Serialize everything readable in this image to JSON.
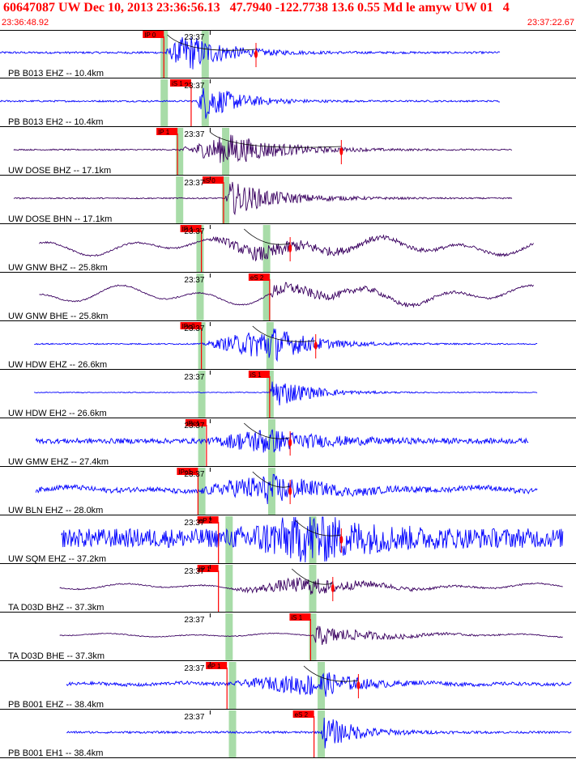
{
  "header": {
    "title": "60647087 UW Dec 10, 2013 23:36:56.13   47.7940 -122.7738 13.6 0.55 Md le amyw UW 01   4",
    "start_time": "23:36:48.92",
    "end_time": "23:37:22.67"
  },
  "chart_data": {
    "type": "line",
    "title": "60647087 UW Dec 10, 2013 23:36:56.13   47.7940 -122.7738 13.6 0.55 Md le amyw UW 01   4",
    "x_range_seconds": [
      0,
      33.75
    ],
    "time_tick_label": "23:37",
    "time_tick_offset_s": 11.08,
    "colors": {
      "blue": "#0000ff",
      "dark": "#3a0060",
      "pick": "#ff0000",
      "window": "#a8dca8",
      "tick": "#000000"
    },
    "traces": [
      {
        "label": "PB B013 EHZ -- 10.4km",
        "color": "blue",
        "data_start": 0.0,
        "data_end": 29.3,
        "noise": 0.05,
        "onset": 9.6,
        "peak": 11.0,
        "amp": 0.9,
        "decay": 2.2,
        "lowfreq": 0.0,
        "pick_label": "IP 0",
        "pick_time": 9.6,
        "windows": [
          9.6,
          12.0
        ],
        "coda_end": 15.0
      },
      {
        "label": "PB B013 EH2 -- 10.4km",
        "color": "blue",
        "data_start": 0.0,
        "data_end": 29.3,
        "noise": 0.04,
        "onset": 11.5,
        "peak": 12.0,
        "amp": 0.85,
        "decay": 2.0,
        "lowfreq": 0.0,
        "pick_label": "iS 1",
        "pick_time": 11.2,
        "windows": [
          9.6,
          12.0
        ],
        "coda_end": null
      },
      {
        "label": "UW DOSE BHZ -- 17.1km",
        "color": "dark",
        "data_start": 0.8,
        "data_end": 30.0,
        "noise": 0.03,
        "onset": 10.4,
        "peak": 13.5,
        "amp": 0.75,
        "decay": 3.0,
        "lowfreq": 0.0,
        "pick_label": "IP 1",
        "pick_time": 10.4,
        "windows": [
          10.5,
          13.2
        ],
        "coda_end": 20.0
      },
      {
        "label": "UW DOSE BHN -- 17.1km",
        "color": "dark",
        "data_start": 0.8,
        "data_end": 30.0,
        "noise": 0.03,
        "onset": 13.2,
        "peak": 13.5,
        "amp": 0.8,
        "decay": 2.8,
        "lowfreq": 0.0,
        "pick_label": "iS 0",
        "pick_time": 13.1,
        "windows": [
          10.5,
          13.2
        ],
        "coda_end": null
      },
      {
        "label": "UW GNW BHZ -- 25.8km",
        "color": "dark",
        "data_start": 2.3,
        "data_end": 31.3,
        "noise": 0.04,
        "onset": 11.8,
        "peak": 15.5,
        "amp": 0.35,
        "decay": 5.0,
        "lowfreq": 0.7,
        "pick_label": "IP 1",
        "pick_time": 11.8,
        "windows": [
          11.7,
          15.6
        ],
        "coda_end": 17.0
      },
      {
        "label": "UW GNW BHE -- 25.8km",
        "color": "dark",
        "data_start": 2.3,
        "data_end": 31.3,
        "noise": 0.03,
        "onset": 15.8,
        "peak": 16.0,
        "amp": 0.3,
        "decay": 5.0,
        "lowfreq": 0.8,
        "pick_label": "eS 2",
        "pick_time": 15.8,
        "windows": [
          11.7,
          15.6
        ],
        "coda_end": null
      },
      {
        "label": "UW HDW EHZ -- 26.6km",
        "color": "blue",
        "data_start": 2.0,
        "data_end": 31.5,
        "noise": 0.03,
        "onset": 11.8,
        "peak": 16.0,
        "amp": 0.85,
        "decay": 2.2,
        "lowfreq": 0.0,
        "pick_label": "IPc0",
        "pick_time": 11.8,
        "windows": [
          11.8,
          15.8
        ],
        "coda_end": 18.5
      },
      {
        "label": "UW HDW EH2 -- 26.6km",
        "color": "blue",
        "data_start": 2.0,
        "data_end": 31.5,
        "noise": 0.02,
        "onset": 15.8,
        "peak": 16.0,
        "amp": 0.8,
        "decay": 2.0,
        "lowfreq": 0.0,
        "pick_label": "iS 1",
        "pick_time": 15.8,
        "windows": [
          11.8,
          15.8
        ],
        "coda_end": null
      },
      {
        "label": "UW GMW EHZ -- 27.4km",
        "color": "blue",
        "data_start": 2.1,
        "data_end": 31.0,
        "noise": 0.12,
        "onset": 12.1,
        "peak": 15.5,
        "amp": 0.55,
        "decay": 3.0,
        "lowfreq": 0.0,
        "pick_label": "iPc1",
        "pick_time": 12.1,
        "windows": [
          11.8,
          15.9
        ],
        "coda_end": 17.0
      },
      {
        "label": "UW BLN EHZ -- 28.0km",
        "color": "blue",
        "data_start": 2.1,
        "data_end": 31.5,
        "noise": 0.12,
        "onset": 11.6,
        "peak": 16.0,
        "amp": 0.65,
        "decay": 2.5,
        "lowfreq": 0.2,
        "pick_label": "IPc1",
        "pick_time": 11.6,
        "windows": [
          11.8,
          15.9
        ],
        "coda_end": 17.0
      },
      {
        "label": "UW SQM EHZ -- 37.2km",
        "color": "blue",
        "data_start": 3.6,
        "data_end": 33.0,
        "noise": 0.45,
        "onset": 13.5,
        "peak": 18.5,
        "amp": 0.9,
        "decay": 3.0,
        "lowfreq": 0.0,
        "pick_label": "eP 2",
        "pick_time": 12.8,
        "windows": [
          13.4,
          18.3
        ],
        "coda_end": 20.0
      },
      {
        "label": "TA D03D BHZ -- 37.3km",
        "color": "dark",
        "data_start": 3.5,
        "data_end": 33.0,
        "noise": 0.03,
        "onset": 13.4,
        "peak": 18.3,
        "amp": 0.4,
        "decay": 3.0,
        "lowfreq": 0.25,
        "pick_label": "IP 1",
        "pick_time": 12.8,
        "windows": [
          13.4,
          18.3
        ],
        "coda_end": 19.5
      },
      {
        "label": "TA D03D BHE -- 37.3km",
        "color": "dark",
        "data_start": 3.5,
        "data_end": 33.0,
        "noise": 0.02,
        "onset": 18.3,
        "peak": 18.5,
        "amp": 0.5,
        "decay": 3.0,
        "lowfreq": 0.15,
        "pick_label": "iS 1",
        "pick_time": 18.2,
        "windows": [
          13.4,
          18.3
        ],
        "coda_end": null
      },
      {
        "label": "PB B001 EHZ -- 38.4km",
        "color": "blue",
        "data_start": 3.9,
        "data_end": 33.5,
        "noise": 0.08,
        "onset": 13.5,
        "peak": 19.0,
        "amp": 0.55,
        "decay": 2.0,
        "lowfreq": 0.1,
        "pick_label": "eP 1",
        "pick_time": 13.3,
        "windows": [
          13.6,
          18.8
        ],
        "coda_end": 21.0
      },
      {
        "label": "PB B001 EH1 -- 38.4km",
        "color": "blue",
        "data_start": 3.9,
        "data_end": 33.5,
        "noise": 0.05,
        "onset": 18.8,
        "peak": 19.0,
        "amp": 0.75,
        "decay": 2.0,
        "lowfreq": 0.0,
        "pick_label": "eS 2",
        "pick_time": 18.4,
        "windows": [
          13.6,
          18.8
        ],
        "coda_end": null
      }
    ]
  }
}
